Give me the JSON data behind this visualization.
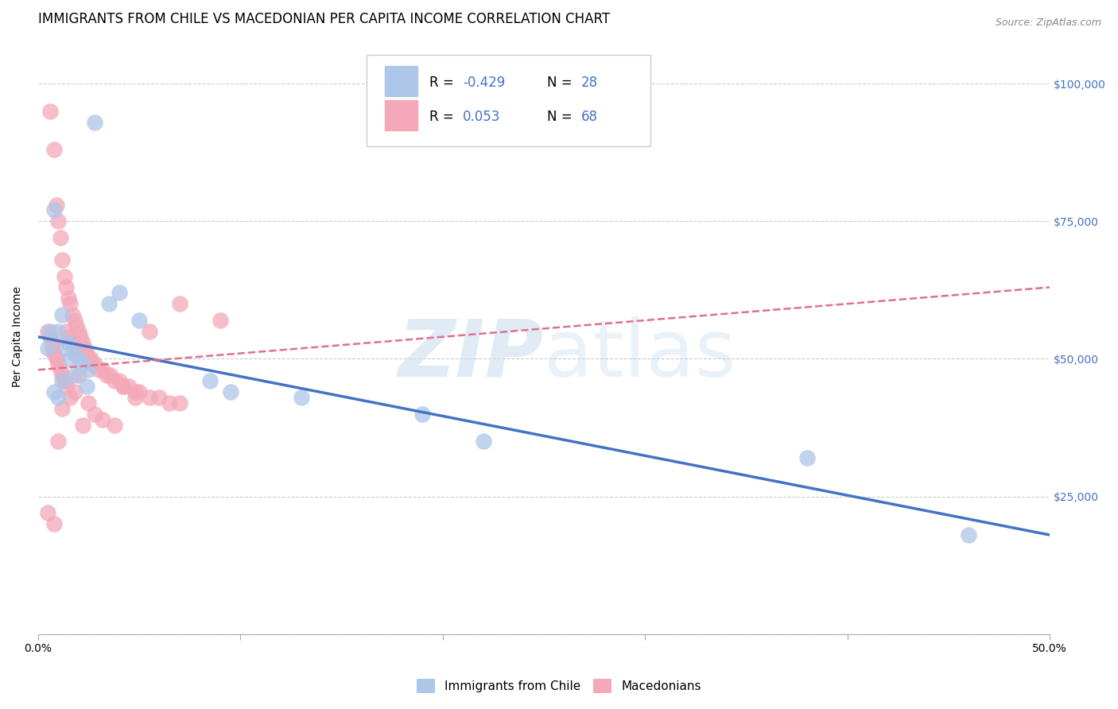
{
  "title": "IMMIGRANTS FROM CHILE VS MACEDONIAN PER CAPITA INCOME CORRELATION CHART",
  "source": "Source: ZipAtlas.com",
  "ylabel": "Per Capita Income",
  "xlim": [
    0,
    0.5
  ],
  "ylim": [
    0,
    108000
  ],
  "yticks": [
    0,
    25000,
    50000,
    75000,
    100000
  ],
  "ytick_labels": [
    "",
    "$25,000",
    "$50,000",
    "$75,000",
    "$100,000"
  ],
  "xticks": [
    0.0,
    0.1,
    0.2,
    0.3,
    0.4,
    0.5
  ],
  "xtick_labels_show": [
    "0.0%",
    "",
    "",
    "",
    "",
    "50.0%"
  ],
  "blue_color": "#aec6e8",
  "pink_color": "#f4a8b8",
  "blue_line_color": "#4472c4",
  "pink_line_color": "#e07090",
  "chile_x": [
    0.006,
    0.028,
    0.005,
    0.012,
    0.015,
    0.018,
    0.008,
    0.01,
    0.014,
    0.016,
    0.02,
    0.022,
    0.025,
    0.018,
    0.024,
    0.012,
    0.008,
    0.01,
    0.035,
    0.04,
    0.05,
    0.085,
    0.095,
    0.13,
    0.19,
    0.38,
    0.46,
    0.22
  ],
  "chile_y": [
    55000,
    93000,
    52000,
    58000,
    53000,
    51000,
    77000,
    55000,
    52000,
    50000,
    50000,
    49000,
    48000,
    47000,
    45000,
    46000,
    44000,
    43000,
    60000,
    62000,
    57000,
    46000,
    44000,
    43000,
    40000,
    32000,
    18000,
    35000
  ],
  "mac_x": [
    0.005,
    0.006,
    0.006,
    0.007,
    0.007,
    0.008,
    0.008,
    0.009,
    0.009,
    0.01,
    0.01,
    0.011,
    0.011,
    0.012,
    0.012,
    0.013,
    0.013,
    0.014,
    0.014,
    0.015,
    0.015,
    0.016,
    0.016,
    0.017,
    0.018,
    0.018,
    0.019,
    0.02,
    0.021,
    0.022,
    0.023,
    0.024,
    0.025,
    0.026,
    0.027,
    0.028,
    0.03,
    0.032,
    0.034,
    0.036,
    0.038,
    0.04,
    0.042,
    0.045,
    0.048,
    0.05,
    0.055,
    0.06,
    0.065,
    0.07,
    0.005,
    0.008,
    0.01,
    0.012,
    0.014,
    0.016,
    0.018,
    0.02,
    0.022,
    0.025,
    0.028,
    0.032,
    0.038,
    0.042,
    0.048,
    0.055,
    0.07,
    0.09
  ],
  "mac_y": [
    55000,
    95000,
    54000,
    53000,
    52000,
    88000,
    51000,
    78000,
    50000,
    75000,
    49000,
    72000,
    48000,
    68000,
    47000,
    65000,
    46000,
    63000,
    55000,
    61000,
    54000,
    60000,
    53000,
    58000,
    57000,
    52000,
    56000,
    55000,
    54000,
    53000,
    52000,
    51000,
    50000,
    50000,
    49000,
    49000,
    48000,
    48000,
    47000,
    47000,
    46000,
    46000,
    45000,
    45000,
    44000,
    44000,
    43000,
    43000,
    42000,
    42000,
    22000,
    20000,
    35000,
    41000,
    45000,
    43000,
    44000,
    47000,
    38000,
    42000,
    40000,
    39000,
    38000,
    45000,
    43000,
    55000,
    60000,
    57000
  ],
  "title_fontsize": 12,
  "tick_fontsize": 10,
  "legend_fontsize": 12
}
